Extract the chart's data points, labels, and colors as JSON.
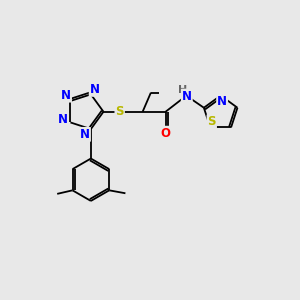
{
  "bg_color": "#e8e8e8",
  "atom_colors": {
    "N": "#0000ff",
    "S": "#b8b800",
    "O": "#ff0000",
    "H": "#666666",
    "C": "#000000"
  },
  "bond_lw": 1.3,
  "font_size_hetero": 8.5,
  "font_size_h": 8.0,
  "xlim": [
    0,
    10
  ],
  "ylim": [
    0,
    10
  ]
}
